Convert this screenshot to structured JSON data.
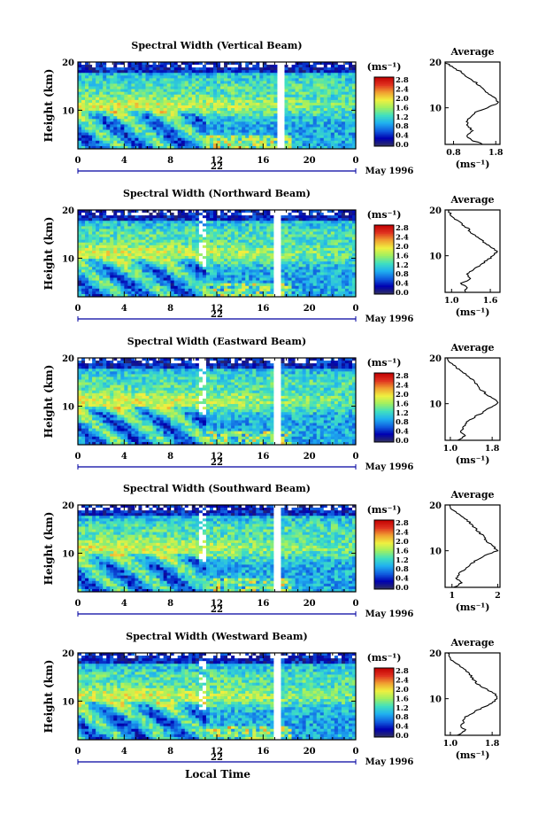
{
  "figure": {
    "x_axis_title": "Local Time",
    "day_label": "22",
    "month_label": "May 1996",
    "y_axis_title": "Height (km)",
    "unit_label": "(ms⁻¹)",
    "colorbar_ticks": [
      "2.8",
      "2.4",
      "2.0",
      "1.6",
      "1.2",
      "0.8",
      "0.4",
      "0.0"
    ],
    "colorscale": [
      "#303060",
      "#0000b0",
      "#1060e0",
      "#20b0f0",
      "#40e0c0",
      "#a0f060",
      "#f0f040",
      "#f0a030",
      "#e03020",
      "#c00000"
    ]
  },
  "chart_data": [
    {
      "type": "heatmap",
      "title": "Spectral Width (Vertical Beam)",
      "x_ticks": [
        "0",
        "4",
        "8",
        "12",
        "16",
        "20",
        "0"
      ],
      "x_range": [
        0,
        24
      ],
      "y_ticks": [
        "20",
        "10"
      ],
      "y_range": [
        2,
        20
      ],
      "colorbar_range": [
        0.0,
        3.0
      ],
      "avg_profile": {
        "title": "Average",
        "xlabel": "(ms⁻¹)",
        "x_ticks": [
          "0.8",
          "1.8"
        ],
        "x_range": [
          0.6,
          1.9
        ],
        "heights": [
          2,
          3,
          4,
          5,
          6,
          7,
          8,
          9,
          10,
          11,
          12,
          13,
          14,
          15,
          16,
          17,
          18,
          19,
          20
        ],
        "values": [
          1.5,
          1.2,
          1.1,
          1.25,
          1.15,
          1.1,
          1.2,
          1.3,
          1.6,
          1.85,
          1.8,
          1.65,
          1.5,
          1.4,
          1.25,
          1.1,
          0.95,
          0.75,
          0.6
        ]
      }
    },
    {
      "type": "heatmap",
      "title": "Spectral Width (Northward Beam)",
      "x_ticks": [
        "0",
        "4",
        "8",
        "12",
        "16",
        "20",
        "0"
      ],
      "x_range": [
        0,
        24
      ],
      "y_ticks": [
        "20",
        "10"
      ],
      "y_range": [
        2,
        20
      ],
      "colorbar_range": [
        0.0,
        3.0
      ],
      "avg_profile": {
        "title": "Average",
        "xlabel": "(ms⁻¹)",
        "x_ticks": [
          "1.0",
          "1.6"
        ],
        "x_range": [
          0.9,
          1.75
        ],
        "heights": [
          2,
          3,
          4,
          5,
          6,
          7,
          8,
          9,
          10,
          11,
          12,
          13,
          14,
          15,
          16,
          17,
          18,
          19,
          20
        ],
        "values": [
          1.2,
          1.25,
          1.15,
          1.3,
          1.25,
          1.35,
          1.45,
          1.55,
          1.65,
          1.7,
          1.6,
          1.5,
          1.4,
          1.3,
          1.25,
          1.15,
          1.05,
          0.98,
          0.95
        ]
      }
    },
    {
      "type": "heatmap",
      "title": "Spectral Width (Eastward Beam)",
      "x_ticks": [
        "0",
        "4",
        "8",
        "12",
        "16",
        "20",
        "0"
      ],
      "x_range": [
        0,
        24
      ],
      "y_ticks": [
        "20",
        "10"
      ],
      "y_range": [
        2,
        20
      ],
      "colorbar_range": [
        0.0,
        3.0
      ],
      "avg_profile": {
        "title": "Average",
        "xlabel": "(ms⁻¹)",
        "x_ticks": [
          "1.0",
          "1.8"
        ],
        "x_range": [
          0.9,
          1.95
        ],
        "heights": [
          2,
          3,
          4,
          5,
          6,
          7,
          8,
          9,
          10,
          11,
          12,
          13,
          14,
          15,
          16,
          17,
          18,
          19,
          20
        ],
        "values": [
          1.15,
          1.3,
          1.2,
          1.25,
          1.3,
          1.45,
          1.6,
          1.75,
          1.9,
          1.85,
          1.7,
          1.6,
          1.5,
          1.45,
          1.35,
          1.2,
          1.1,
          1.0,
          0.95
        ]
      }
    },
    {
      "type": "heatmap",
      "title": "Spectral Width (Southward Beam)",
      "x_ticks": [
        "0",
        "4",
        "8",
        "12",
        "16",
        "20",
        "0"
      ],
      "x_range": [
        0,
        24
      ],
      "y_ticks": [
        "20",
        "10"
      ],
      "y_range": [
        2,
        20
      ],
      "colorbar_range": [
        0.0,
        3.0
      ],
      "avg_profile": {
        "title": "Average",
        "xlabel": "(ms⁻¹)",
        "x_ticks": [
          "1",
          "2"
        ],
        "x_range": [
          0.85,
          2.05
        ],
        "heights": [
          2,
          3,
          4,
          5,
          6,
          7,
          8,
          9,
          10,
          11,
          12,
          13,
          14,
          15,
          16,
          17,
          18,
          19,
          20
        ],
        "values": [
          1.05,
          1.2,
          1.1,
          1.15,
          1.3,
          1.4,
          1.55,
          1.75,
          2.0,
          1.9,
          1.75,
          1.7,
          1.6,
          1.5,
          1.4,
          1.3,
          1.15,
          1.0,
          0.95
        ]
      }
    },
    {
      "type": "heatmap",
      "title": "Spectral Width (Westward Beam)",
      "x_ticks": [
        "0",
        "4",
        "8",
        "12",
        "16",
        "20",
        "0"
      ],
      "x_range": [
        0,
        24
      ],
      "y_ticks": [
        "20",
        "10"
      ],
      "y_range": [
        2,
        20
      ],
      "colorbar_range": [
        0.0,
        3.0
      ],
      "avg_profile": {
        "title": "Average",
        "xlabel": "(ms⁻¹)",
        "x_ticks": [
          "1.0",
          "1.8"
        ],
        "x_range": [
          0.9,
          1.95
        ],
        "heights": [
          2,
          3,
          4,
          5,
          6,
          7,
          8,
          9,
          10,
          11,
          12,
          13,
          14,
          15,
          16,
          17,
          18,
          19,
          20
        ],
        "values": [
          1.15,
          1.3,
          1.2,
          1.25,
          1.3,
          1.45,
          1.6,
          1.8,
          1.9,
          1.85,
          1.7,
          1.55,
          1.45,
          1.4,
          1.3,
          1.2,
          1.05,
          0.98,
          0.95
        ]
      }
    }
  ]
}
